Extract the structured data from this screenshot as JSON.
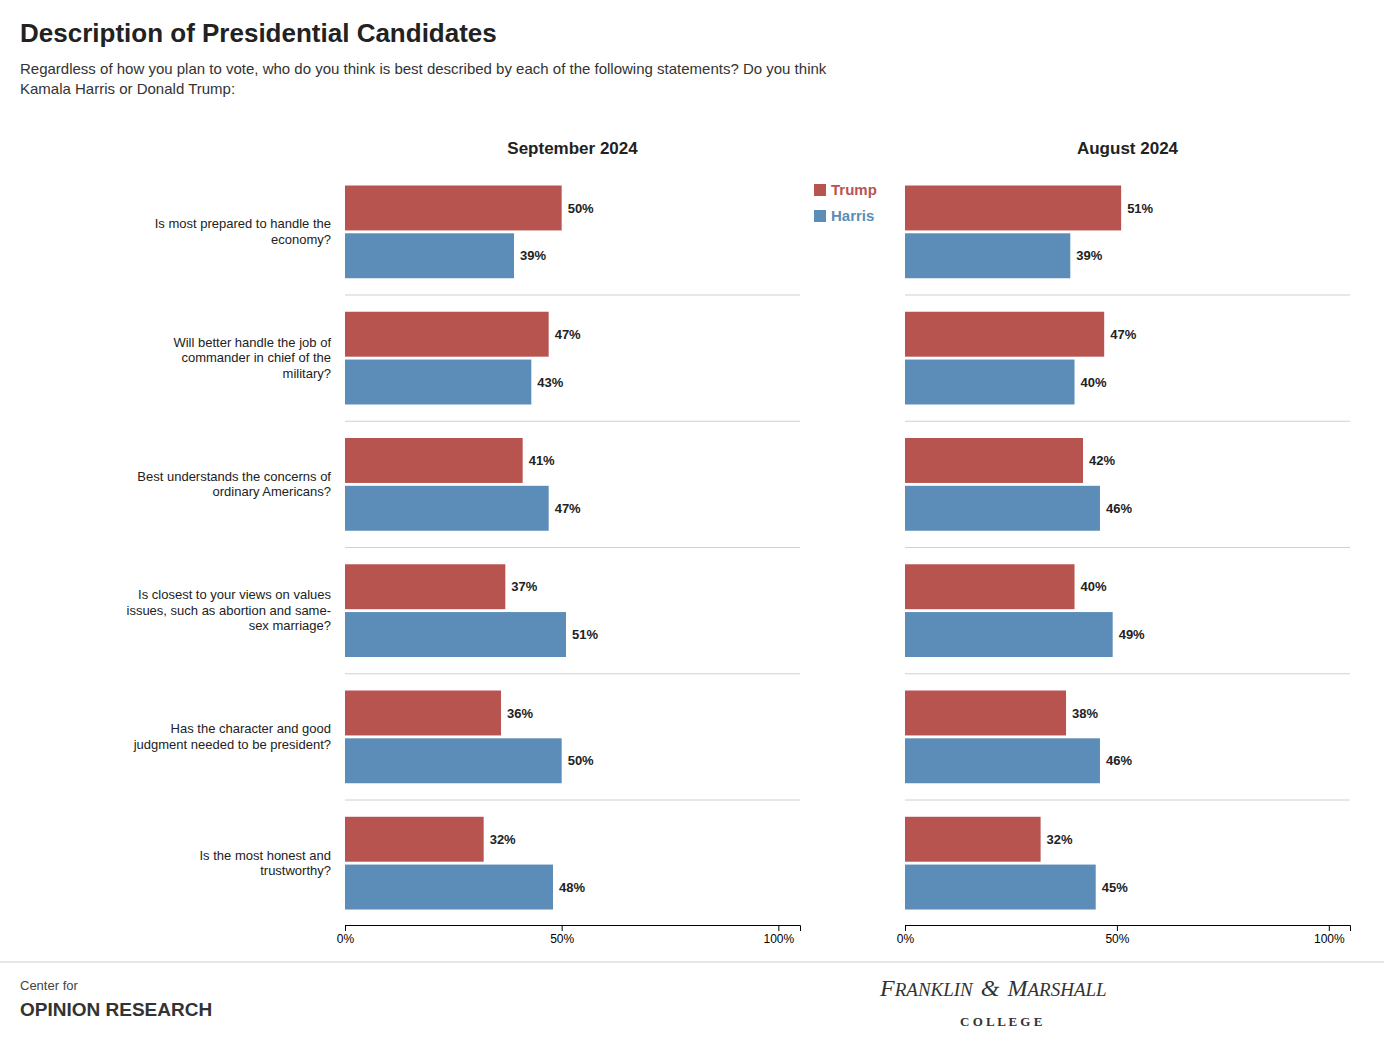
{
  "title": "Description of Presidential Candidates",
  "subtitle": "Regardless of how you plan to vote, who do you think is best described by each of the following statements? Do you think\nKamala Harris or Donald Trump:",
  "annotations": [
    "Center for",
    "OPINION RESEARCH",
    "F",
    "RANKLIN",
    "&",
    "M",
    "ARSHALL",
    "C O L L E G E"
  ],
  "chart_data": [
    {
      "type": "bar",
      "orientation": "horizontal",
      "title": "September 2024",
      "categories": [
        "Is most prepared to handle the\neconomy?",
        "Will better handle the job of\ncommander in chief of the\nmilitary?",
        "Best understands the concerns of\nordinary Americans?",
        "Is closest to your views on values\nissues, such as abortion and same-\nsex marriage?",
        "Has the character and good\njudgment needed to be president?",
        "Is the most honest and\ntrustworthy?"
      ],
      "series": [
        {
          "name": "Trump",
          "color": "#b85450",
          "values": [
            50,
            47,
            41,
            37,
            36,
            32
          ],
          "value_labels": [
            "50%",
            "47%",
            "41%",
            "37%",
            "36%",
            "32%"
          ]
        },
        {
          "name": "Harris",
          "color": "#5b8db8",
          "values": [
            39,
            43,
            47,
            51,
            50,
            48
          ],
          "value_labels": [
            "39%",
            "43%",
            "47%",
            "51%",
            "50%",
            "48%"
          ]
        }
      ],
      "xlim": [
        0,
        105
      ],
      "xticks": [
        {
          "value": 0,
          "label": "0%"
        },
        {
          "value": 50,
          "label": "50%"
        },
        {
          "value": 100,
          "label": "100%"
        }
      ],
      "data_labels": true,
      "grid": false,
      "legend": "upper right"
    },
    {
      "type": "bar",
      "orientation": "horizontal",
      "title": "August 2024",
      "categories": [
        null,
        null,
        null,
        null,
        null,
        null
      ],
      "series": [
        {
          "color": "#b85450",
          "values": [
            51,
            47,
            42,
            40,
            38,
            32
          ],
          "value_labels": [
            "51%",
            "47%",
            "42%",
            "40%",
            "38%",
            "32%"
          ]
        },
        {
          "color": "#5b8db8",
          "values": [
            39,
            40,
            46,
            49,
            46,
            45
          ],
          "value_labels": [
            "39%",
            "40%",
            "46%",
            "49%",
            "46%",
            "45%"
          ]
        }
      ],
      "xlim": [
        0,
        105
      ],
      "xticks": [
        {
          "value": 0,
          "label": "0%"
        },
        {
          "value": 50,
          "label": "50%"
        },
        {
          "value": 100,
          "label": "100%"
        }
      ],
      "data_labels": true,
      "grid": false
    }
  ]
}
